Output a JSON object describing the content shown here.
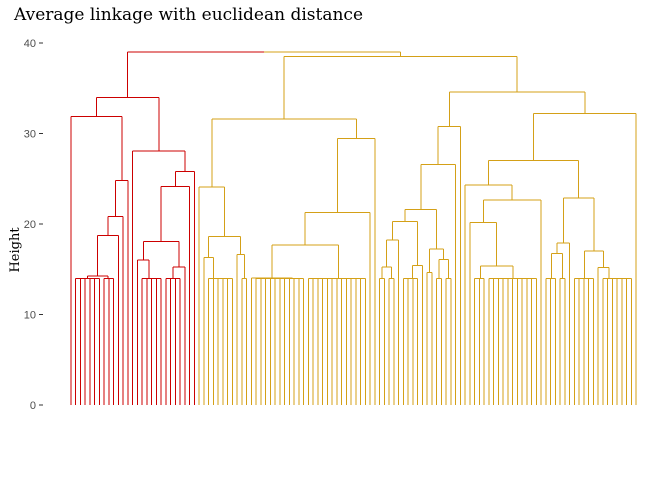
{
  "chart_data": {
    "type": "dendrogram",
    "title": "Average linkage with euclidean distance",
    "xlabel": "",
    "ylabel": "Height",
    "ylim": [
      0,
      40
    ],
    "yticks": [
      0,
      10,
      20,
      30,
      40
    ],
    "grid": false,
    "leaf_labels_shown": false,
    "clusters": [
      {
        "color": "#cc0000",
        "leaf_count": 27
      },
      {
        "color": "#d4a017",
        "leaf_count": 93
      }
    ],
    "root_height": 39.0,
    "left_cluster_height": 34.0,
    "right_cluster_height": 38.5
  }
}
